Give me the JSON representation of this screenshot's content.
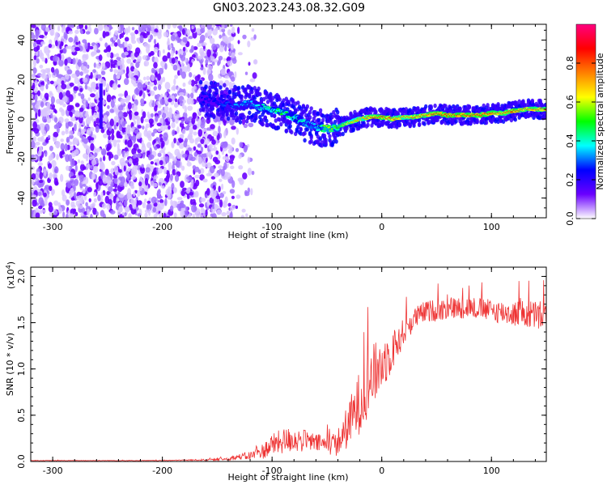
{
  "figure_title": "GN03.2023.243.08.32.G09",
  "chart_data": [
    {
      "type": "heatmap",
      "xlabel": "Height of straight line (km)",
      "ylabel": "Frequency (Hz)",
      "xlim": [
        -320,
        150
      ],
      "ylim": [
        -50,
        48
      ],
      "xticks": [
        -300,
        -200,
        -100,
        0,
        100
      ],
      "yticks": [
        -40,
        -20,
        0,
        20,
        40
      ],
      "colorbar": {
        "label": "Normalized spectral amplitude",
        "range": [
          0.0,
          1.0
        ],
        "ticks": [
          0.0,
          0.2,
          0.4,
          0.6,
          0.8
        ],
        "colors": [
          "#ffffff",
          "#6a00ff",
          "#0000ff",
          "#00ffff",
          "#00ff00",
          "#ffff00",
          "#ff8000",
          "#ff0000",
          "#ff0080"
        ]
      },
      "noise_region_x": [
        -320,
        -135
      ],
      "vertical_streak": {
        "x": -256,
        "y_range": [
          -5,
          18
        ]
      },
      "ridge": {
        "x": [
          -165,
          -150,
          -140,
          -130,
          -120,
          -110,
          -100,
          -90,
          -80,
          -70,
          -60,
          -50,
          -40,
          -30,
          -20,
          -10,
          0,
          10,
          20,
          30,
          40,
          50,
          60,
          70,
          80,
          90,
          100,
          110,
          120,
          130,
          140,
          150
        ],
        "frequency_hz": [
          10,
          9,
          8,
          7,
          8,
          6,
          5,
          3,
          1,
          -2,
          -4,
          -5,
          -4,
          -2,
          0,
          1,
          1,
          0,
          1,
          1,
          2,
          3,
          2,
          2,
          2,
          2,
          3,
          3,
          4,
          5,
          5,
          5
        ],
        "amplitude": [
          0.25,
          0.25,
          0.3,
          0.35,
          0.35,
          0.4,
          0.45,
          0.5,
          0.45,
          0.4,
          0.35,
          0.6,
          0.5,
          0.65,
          0.7,
          0.8,
          0.85,
          0.8,
          0.75,
          0.8,
          0.8,
          0.85,
          0.85,
          0.85,
          0.85,
          0.85,
          0.85,
          0.8,
          0.85,
          0.8,
          0.8,
          0.8
        ]
      }
    },
    {
      "type": "line",
      "xlabel": "Height of straight line (km)",
      "ylabel": "SNR (10 * v/v)",
      "y_multiplier": "(x10",
      "y_multiplier_exp": "4",
      "y_multiplier_close": ")",
      "xlim": [
        -320,
        150
      ],
      "ylim": [
        0,
        2.1
      ],
      "xticks": [
        -300,
        -200,
        -100,
        0,
        100
      ],
      "yticks": [
        0.0,
        0.5,
        1.0,
        1.5,
        2.0
      ],
      "color": "#ee3333",
      "series": [
        {
          "x": [
            -320,
            -250,
            -200,
            -150,
            -140,
            -130,
            -120,
            -110,
            -100,
            -90,
            -80,
            -70,
            -60,
            -50,
            -40,
            -30,
            -20,
            -10,
            0,
            10,
            20,
            30,
            40,
            60,
            80,
            100,
            120,
            150
          ],
          "y": [
            0.01,
            0.01,
            0.01,
            0.02,
            0.03,
            0.05,
            0.06,
            0.1,
            0.18,
            0.22,
            0.24,
            0.22,
            0.2,
            0.18,
            0.2,
            0.4,
            0.65,
            0.9,
            1.05,
            1.2,
            1.4,
            1.55,
            1.62,
            1.65,
            1.67,
            1.63,
            1.6,
            1.57
          ],
          "noise_amplitude": [
            0.003,
            0.003,
            0.003,
            0.01,
            0.02,
            0.03,
            0.05,
            0.08,
            0.12,
            0.14,
            0.14,
            0.12,
            0.1,
            0.1,
            0.15,
            0.25,
            0.35,
            0.35,
            0.3,
            0.22,
            0.15,
            0.12,
            0.12,
            0.12,
            0.12,
            0.12,
            0.14,
            0.18
          ]
        }
      ]
    }
  ]
}
